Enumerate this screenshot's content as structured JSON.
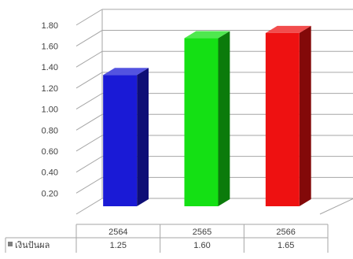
{
  "chart_data": {
    "type": "bar",
    "title": "",
    "xlabel": "",
    "ylabel": "",
    "categories": [
      "2564",
      "2565",
      "2566"
    ],
    "series": [
      {
        "name": "เงินปันผล",
        "values": [
          1.25,
          1.6,
          1.65
        ],
        "value_labels": [
          "1.25",
          "1.60",
          "1.65"
        ]
      }
    ],
    "bar_colors": [
      "#1a1ad6",
      "#14e014",
      "#ee1111"
    ],
    "ylim": [
      0,
      1.8
    ],
    "y_ticks": [
      0.2,
      0.4,
      0.6,
      0.8,
      1.0,
      1.2,
      1.4,
      1.6,
      1.8
    ],
    "y_tick_labels": [
      "0.20",
      "0.40",
      "0.60",
      "0.80",
      "1.00",
      "1.20",
      "1.40",
      "1.60",
      "1.80"
    ],
    "grid": true,
    "legend": "data-table-left",
    "style": "3d-column-with-data-table",
    "legend_marker_color": "#7f7f7f"
  }
}
